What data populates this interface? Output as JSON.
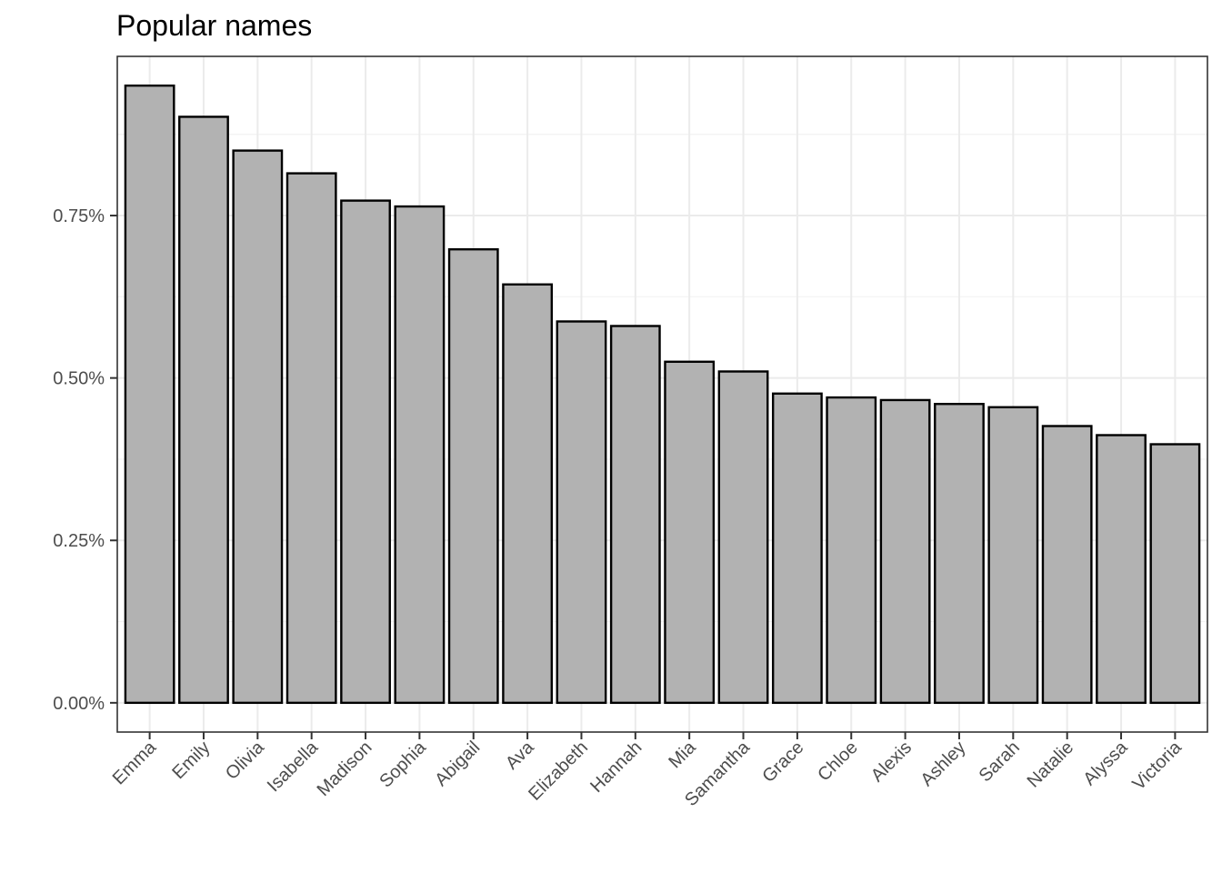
{
  "chart_data": {
    "type": "bar",
    "title": "Popular names",
    "xlabel": "",
    "ylabel": "",
    "categories": [
      "Emma",
      "Emily",
      "Olivia",
      "Isabella",
      "Madison",
      "Sophia",
      "Abigail",
      "Ava",
      "Elizabeth",
      "Hannah",
      "Mia",
      "Samantha",
      "Grace",
      "Chloe",
      "Alexis",
      "Ashley",
      "Sarah",
      "Natalie",
      "Alyssa",
      "Victoria"
    ],
    "values": [
      0.0095,
      0.00902,
      0.0085,
      0.00815,
      0.00773,
      0.00764,
      0.00698,
      0.00644,
      0.00587,
      0.0058,
      0.00525,
      0.0051,
      0.00476,
      0.0047,
      0.00466,
      0.0046,
      0.00455,
      0.00426,
      0.00412,
      0.00398
    ],
    "ylim": [
      -0.00045,
      0.00995
    ],
    "yticks": [
      0,
      0.0025,
      0.005,
      0.0075
    ],
    "ytick_labels": [
      "0.00%",
      "0.25%",
      "0.50%",
      "0.75%"
    ],
    "grid": true,
    "bar_fill": "#b2b2b2",
    "bar_outline": "#000000"
  }
}
